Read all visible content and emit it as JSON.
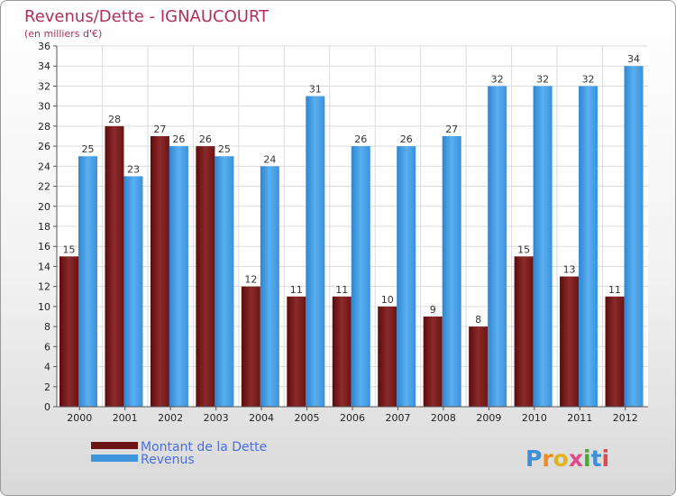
{
  "chart_data": {
    "type": "bar",
    "title": "Revenus/Dette - IGNAUCOURT",
    "subtitle": "(en milliers d'€)",
    "categories": [
      "2000",
      "2001",
      "2002",
      "2003",
      "2004",
      "2005",
      "2006",
      "2007",
      "2008",
      "2009",
      "2010",
      "2011",
      "2012"
    ],
    "series": [
      {
        "name": "Montant de la Dette",
        "color": "#7a1818",
        "values": [
          15,
          28,
          27,
          26,
          12,
          11,
          11,
          10,
          9,
          8,
          15,
          13,
          11
        ]
      },
      {
        "name": "Revenus",
        "color": "#3d96dc",
        "values": [
          25,
          23,
          26,
          25,
          24,
          31,
          26,
          26,
          27,
          32,
          32,
          32,
          34
        ]
      }
    ],
    "ylim": [
      0,
      36
    ],
    "ytick_step": 2,
    "grid": true,
    "legend_position": "bottom-left"
  },
  "brand": {
    "logo_text": "Proxiti"
  }
}
